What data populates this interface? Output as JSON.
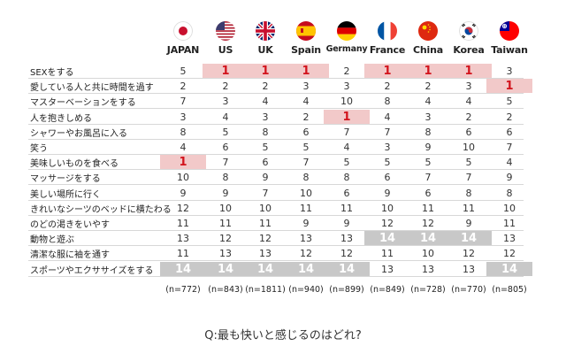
{
  "chart_data": {
    "type": "table",
    "columns": [
      "JAPAN",
      "US",
      "UK",
      "Spain",
      "Germany",
      "France",
      "China",
      "Korea",
      "Taiwan"
    ],
    "rows": [
      {
        "label": "SEXをする",
        "values": [
          5,
          1,
          1,
          1,
          2,
          1,
          1,
          1,
          3
        ]
      },
      {
        "label": "愛している人と共に時間を過す",
        "values": [
          2,
          2,
          2,
          3,
          3,
          2,
          2,
          3,
          1
        ]
      },
      {
        "label": "マスターベーションをする",
        "values": [
          7,
          3,
          4,
          4,
          10,
          8,
          4,
          4,
          5
        ]
      },
      {
        "label": "人を抱きしめる",
        "values": [
          3,
          4,
          3,
          2,
          1,
          4,
          3,
          2,
          2
        ]
      },
      {
        "label": "シャワーやお風呂に入る",
        "values": [
          8,
          5,
          8,
          6,
          7,
          7,
          8,
          6,
          6
        ]
      },
      {
        "label": "笑う",
        "values": [
          4,
          6,
          5,
          5,
          4,
          3,
          9,
          10,
          7
        ]
      },
      {
        "label": "美味しいものを食べる",
        "values": [
          1,
          7,
          6,
          7,
          5,
          5,
          5,
          5,
          4
        ]
      },
      {
        "label": "マッサージをする",
        "values": [
          10,
          8,
          9,
          8,
          8,
          6,
          7,
          7,
          9
        ]
      },
      {
        "label": "美しい場所に行く",
        "values": [
          9,
          9,
          7,
          10,
          6,
          9,
          6,
          8,
          8
        ]
      },
      {
        "label": "きれいなシーツのベッドに横たわる",
        "values": [
          12,
          10,
          10,
          11,
          11,
          10,
          11,
          11,
          10
        ]
      },
      {
        "label": "のどの渇きをいやす",
        "values": [
          11,
          11,
          11,
          9,
          9,
          12,
          12,
          9,
          11
        ]
      },
      {
        "label": "動物と遊ぶ",
        "values": [
          13,
          12,
          12,
          13,
          13,
          14,
          14,
          14,
          13
        ]
      },
      {
        "label": "清潔な服に袖を通す",
        "values": [
          11,
          13,
          13,
          12,
          12,
          11,
          10,
          12,
          12
        ]
      },
      {
        "label": "スポーツやエクササイズをする",
        "values": [
          14,
          14,
          14,
          14,
          14,
          13,
          13,
          13,
          14
        ]
      }
    ],
    "sample_sizes": [
      "(n=772)",
      "(n=843)",
      "(n=1811)",
      "(n=940)",
      "(n=899)",
      "(n=849)",
      "(n=728)",
      "(n=770)",
      "(n=805)"
    ],
    "highlight_rules": {
      "rank_1": "#f2c9c9",
      "rank_14": "#c8c8c8",
      "rank_1_text": "#d2141d"
    },
    "flags": [
      "japan-flag-icon",
      "us-flag-icon",
      "uk-flag-icon",
      "spain-flag-icon",
      "germany-flag-icon",
      "france-flag-icon",
      "china-flag-icon",
      "korea-flag-icon",
      "taiwan-flag-icon"
    ]
  },
  "caption": "Q:最も快いと感じるのはどれ?"
}
